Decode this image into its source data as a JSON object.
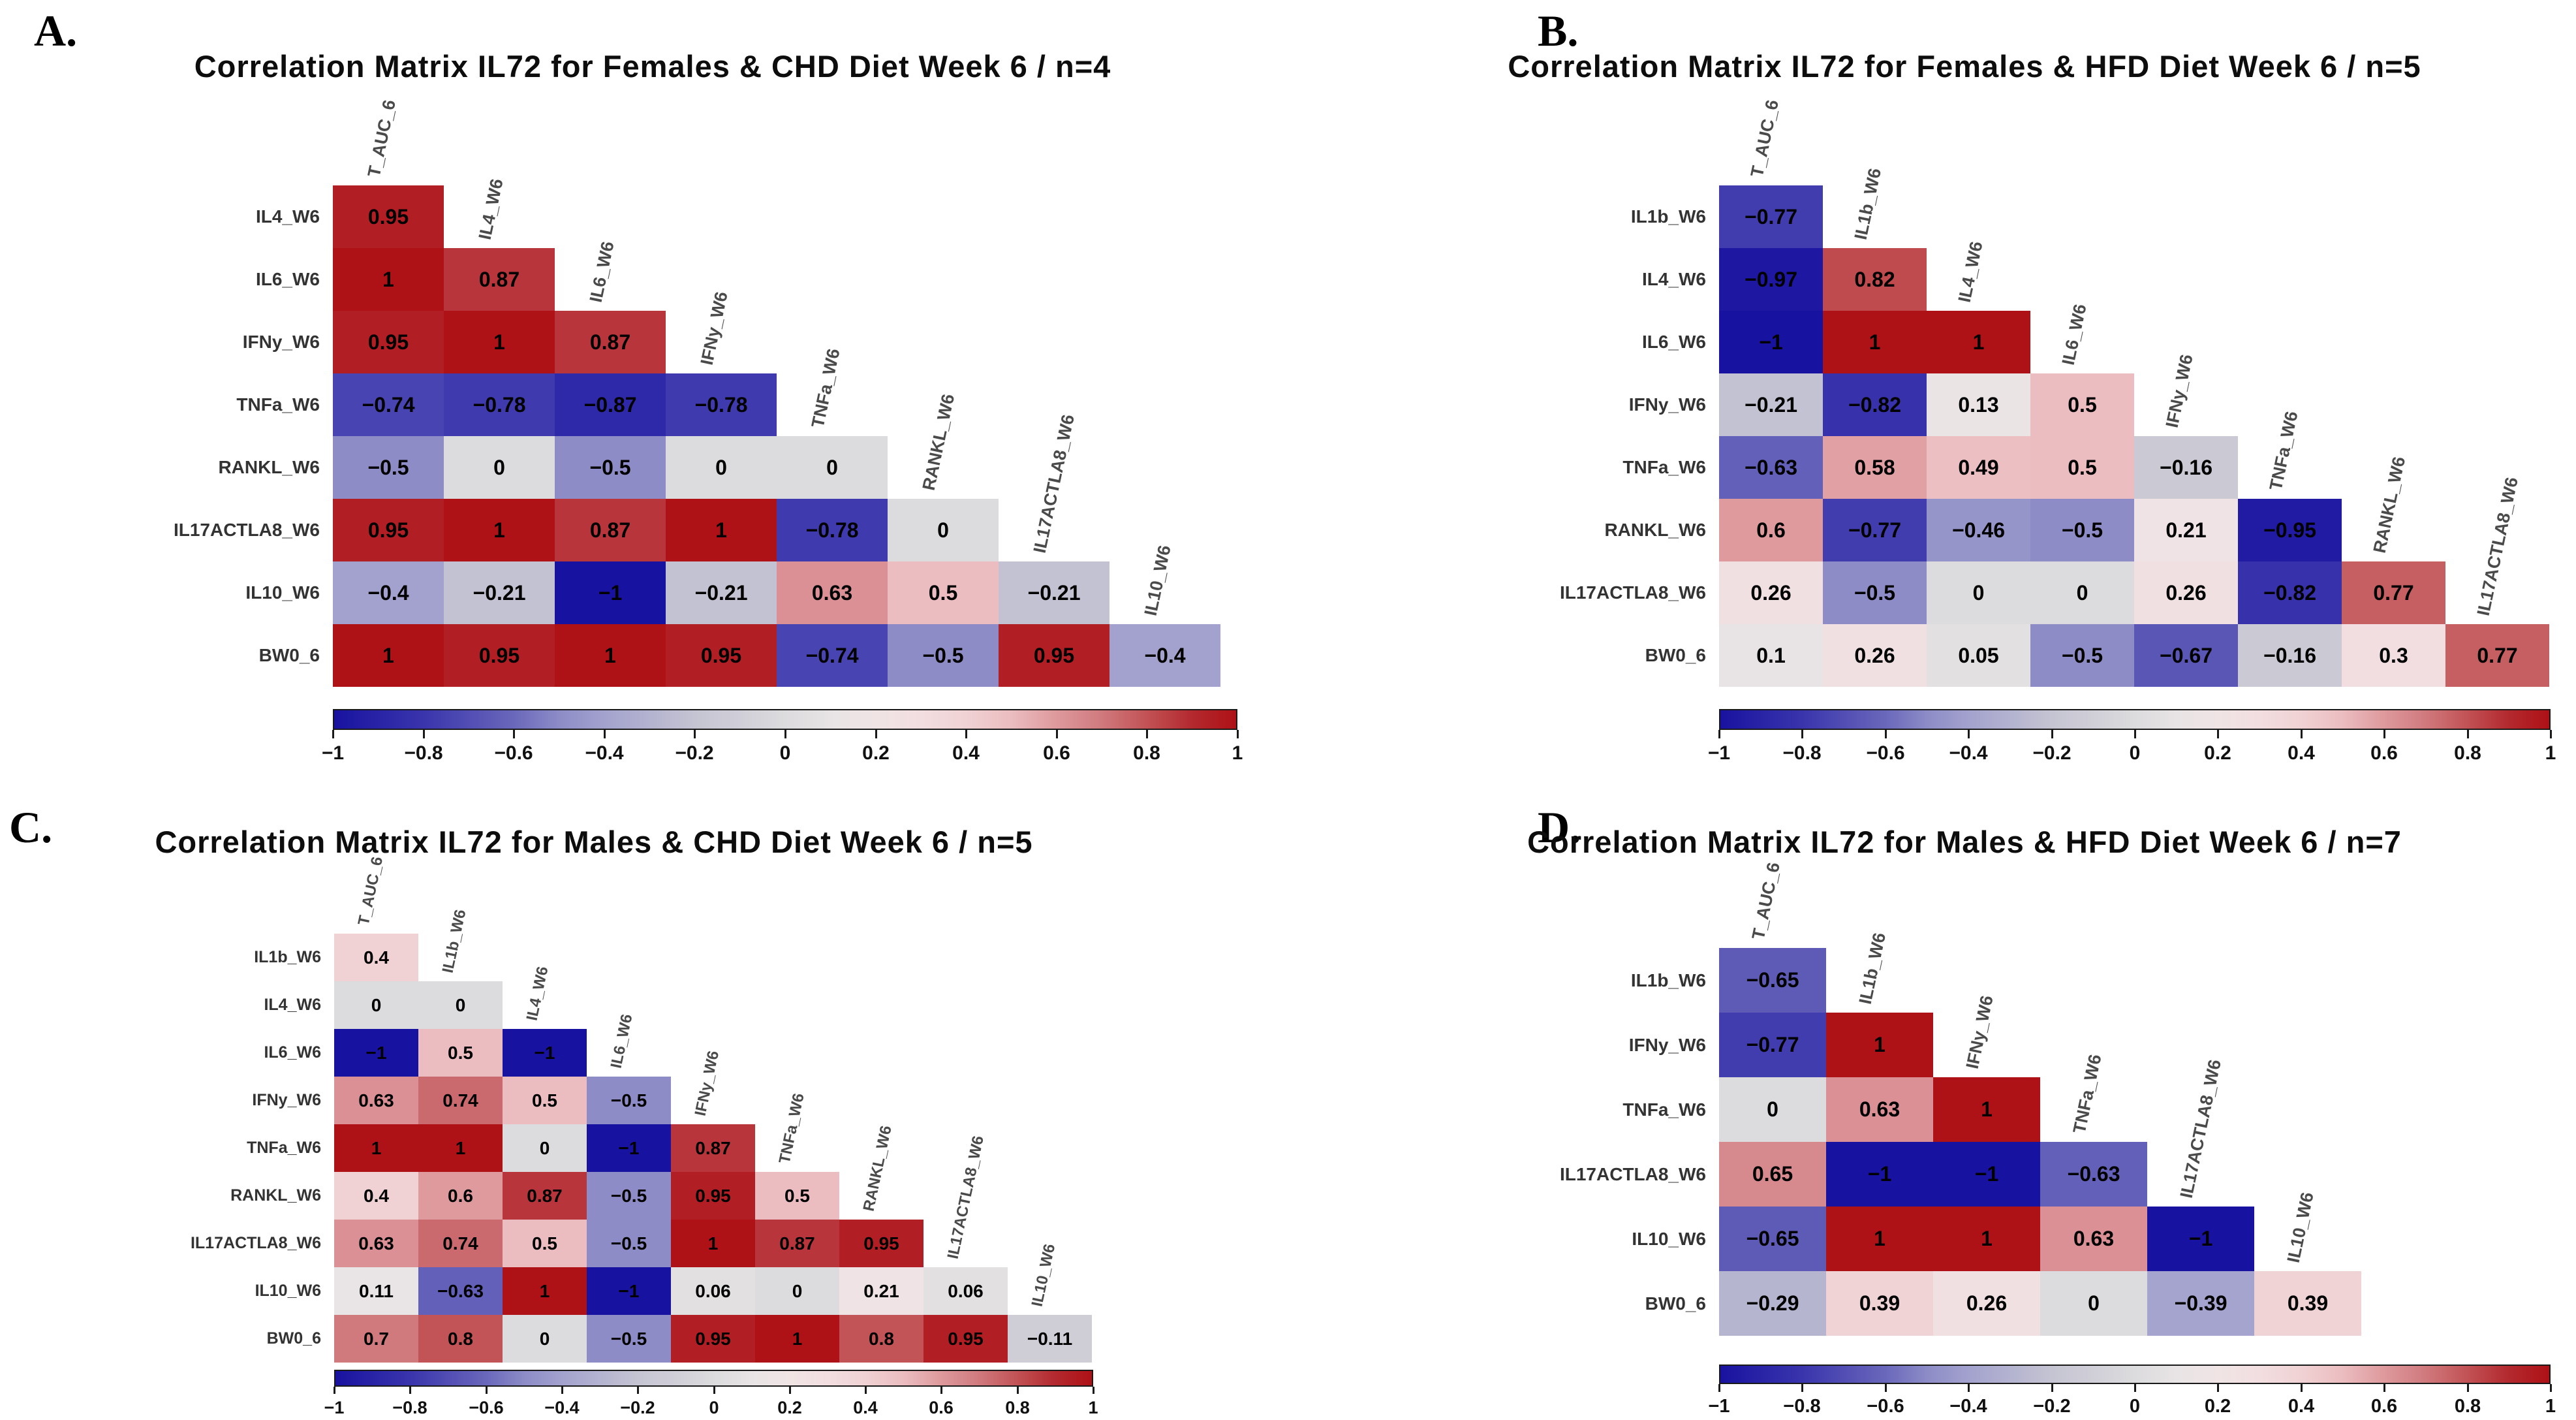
{
  "style": {
    "background": "#ffffff",
    "colormap_stops": [
      [
        -1.0,
        "#1812A0"
      ],
      [
        -0.8,
        "#3A35AC"
      ],
      [
        -0.6,
        "#6A68BB"
      ],
      [
        -0.5,
        "#8D8CC7"
      ],
      [
        -0.4,
        "#A3A2CE"
      ],
      [
        -0.2,
        "#C5C4D2"
      ],
      [
        0.0,
        "#DCDBDD"
      ],
      [
        0.1,
        "#E8E4E5"
      ],
      [
        0.2,
        "#F0E4E5"
      ],
      [
        0.3,
        "#F2DEE0"
      ],
      [
        0.4,
        "#F0D2D4"
      ],
      [
        0.5,
        "#EBBDC0"
      ],
      [
        0.6,
        "#DE9A9D"
      ],
      [
        0.7,
        "#D07A7E"
      ],
      [
        0.8,
        "#C25356"
      ],
      [
        0.9,
        "#B32A2F"
      ],
      [
        1.0,
        "#AE1116"
      ]
    ]
  },
  "chart_data": [
    {
      "type": "heatmap",
      "panel": "A.",
      "title": "Correlation Matrix IL72 for Females & CHD Diet Week 6 / n=4",
      "rows": [
        "IL4_W6",
        "IL6_W6",
        "IFNy_W6",
        "TNFa_W6",
        "RANKL_W6",
        "IL17ACTLA8_W6",
        "IL10_W6",
        "BW0_6"
      ],
      "cols": [
        "T_AUC_6",
        "IL4_W6",
        "IL6_W6",
        "IFNy_W6",
        "TNFa_W6",
        "RANKL_W6",
        "IL17ACTLA8_W6",
        "IL10_W6"
      ],
      "values": [
        [
          0.95
        ],
        [
          1,
          0.87
        ],
        [
          0.95,
          1,
          0.87
        ],
        [
          -0.74,
          -0.78,
          -0.87,
          -0.78
        ],
        [
          -0.5,
          0,
          -0.5,
          0,
          0
        ],
        [
          0.95,
          1,
          0.87,
          1,
          -0.78,
          0
        ],
        [
          -0.4,
          -0.21,
          -1,
          -0.21,
          0.63,
          0.5,
          -0.21
        ],
        [
          1,
          0.95,
          1,
          0.95,
          -0.74,
          -0.5,
          0.95,
          -0.4
        ]
      ],
      "colorbar": {
        "min": -1,
        "max": 1,
        "ticks": [
          -1,
          -0.8,
          -0.6,
          -0.4,
          -0.2,
          0,
          0.2,
          0.4,
          0.6,
          0.8,
          1
        ]
      }
    },
    {
      "type": "heatmap",
      "panel": "B.",
      "title": "Correlation Matrix IL72 for Females & HFD Diet Week 6 / n=5",
      "rows": [
        "IL1b_W6",
        "IL4_W6",
        "IL6_W6",
        "IFNy_W6",
        "TNFa_W6",
        "RANKL_W6",
        "IL17ACTLA8_W6",
        "BW0_6"
      ],
      "cols": [
        "T_AUC_6",
        "IL1b_W6",
        "IL4_W6",
        "IL6_W6",
        "IFNy_W6",
        "TNFa_W6",
        "RANKL_W6",
        "IL17ACTLA8_W6"
      ],
      "values": [
        [
          -0.77
        ],
        [
          -0.97,
          0.82
        ],
        [
          -1,
          1,
          1
        ],
        [
          -0.21,
          -0.82,
          0.13,
          0.5
        ],
        [
          -0.63,
          0.58,
          0.49,
          0.5,
          -0.16
        ],
        [
          0.6,
          -0.77,
          -0.46,
          -0.5,
          0.21,
          -0.95
        ],
        [
          0.26,
          -0.5,
          0,
          0,
          0.26,
          -0.82,
          0.77
        ],
        [
          0.1,
          0.26,
          0.05,
          -0.5,
          -0.67,
          -0.16,
          0.3,
          0.77
        ]
      ],
      "colorbar": {
        "min": -1,
        "max": 1,
        "ticks": [
          -1,
          -0.8,
          -0.6,
          -0.4,
          -0.2,
          0,
          0.2,
          0.4,
          0.6,
          0.8,
          1
        ]
      }
    },
    {
      "type": "heatmap",
      "panel": "C.",
      "title": "Correlation Matrix IL72 for Males & CHD Diet Week 6 / n=5",
      "rows": [
        "IL1b_W6",
        "IL4_W6",
        "IL6_W6",
        "IFNy_W6",
        "TNFa_W6",
        "RANKL_W6",
        "IL17ACTLA8_W6",
        "IL10_W6",
        "BW0_6"
      ],
      "cols": [
        "T_AUC_6",
        "IL1b_W6",
        "IL4_W6",
        "IL6_W6",
        "IFNy_W6",
        "TNFa_W6",
        "RANKL_W6",
        "IL17ACTLA8_W6",
        "IL10_W6"
      ],
      "values": [
        [
          0.4
        ],
        [
          0,
          0
        ],
        [
          -1,
          0.5,
          -1
        ],
        [
          0.63,
          0.74,
          0.5,
          -0.5
        ],
        [
          1,
          1,
          0,
          -1,
          0.87
        ],
        [
          0.4,
          0.6,
          0.87,
          -0.5,
          0.95,
          0.5
        ],
        [
          0.63,
          0.74,
          0.5,
          -0.5,
          1,
          0.87,
          0.95
        ],
        [
          0.11,
          -0.63,
          1,
          -1,
          0.06,
          0,
          0.21,
          0.06
        ],
        [
          0.7,
          0.8,
          0,
          -0.5,
          0.95,
          1,
          0.8,
          0.95,
          -0.11
        ]
      ],
      "colorbar": {
        "min": -1,
        "max": 1,
        "ticks": [
          -1,
          -0.8,
          -0.6,
          -0.4,
          -0.2,
          0,
          0.2,
          0.4,
          0.6,
          0.8,
          1
        ]
      }
    },
    {
      "type": "heatmap",
      "panel": "D.",
      "title": "Correlation Matrix IL72 for Males & HFD Diet Week 6 / n=7",
      "rows": [
        "IL1b_W6",
        "IFNy_W6",
        "TNFa_W6",
        "IL17ACTLA8_W6",
        "IL10_W6",
        "BW0_6"
      ],
      "cols": [
        "T_AUC_6",
        "IL1b_W6",
        "IFNy_W6",
        "TNFa_W6",
        "IL17ACTLA8_W6",
        "IL10_W6"
      ],
      "values": [
        [
          -0.65
        ],
        [
          -0.77,
          1
        ],
        [
          0,
          0.63,
          1
        ],
        [
          0.65,
          -1,
          -1,
          -0.63
        ],
        [
          -0.65,
          1,
          1,
          0.63,
          -1
        ],
        [
          -0.29,
          0.39,
          0.26,
          0,
          -0.39,
          0.39
        ]
      ],
      "colorbar": {
        "min": -1,
        "max": 1,
        "ticks": [
          -1,
          -0.8,
          -0.6,
          -0.4,
          -0.2,
          0,
          0.2,
          0.4,
          0.6,
          0.8,
          1
        ]
      }
    }
  ]
}
